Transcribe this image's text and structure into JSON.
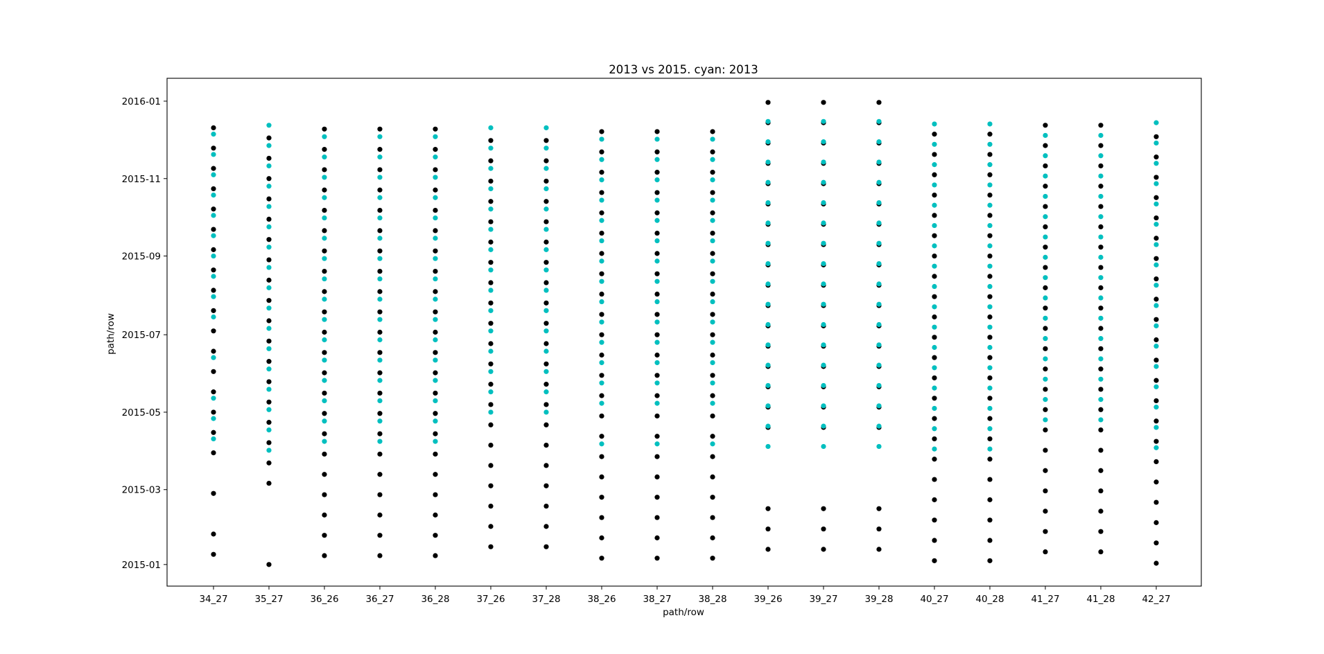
{
  "chart_data": {
    "type": "scatter",
    "title": "2013 vs 2015. cyan: 2013",
    "xlabel": "path/row",
    "ylabel": "path/row",
    "categories": [
      "34_27",
      "35_27",
      "36_26",
      "36_27",
      "36_28",
      "37_26",
      "37_28",
      "38_26",
      "38_27",
      "38_28",
      "39_26",
      "39_27",
      "39_28",
      "40_27",
      "40_28",
      "41_27",
      "41_28",
      "42_27"
    ],
    "y_ticks": [
      "2015-01",
      "2015-03",
      "2015-05",
      "2015-07",
      "2015-09",
      "2015-11",
      "2016-01"
    ],
    "ylim": [
      "2014-12-15",
      "2016-01-19"
    ],
    "grid": false,
    "colors": {
      "2015": "#000000",
      "2013": "#00bfbf"
    },
    "series": [
      {
        "name": "2015",
        "color": "#000000",
        "columns": [
          {
            "category": "34_27",
            "start": "2015-01-09",
            "end": "2015-12-22",
            "skip": [
              "2015-02-10",
              "2015-03-14"
            ]
          },
          {
            "category": "35_27",
            "start": "2015-01-01",
            "end": "2015-12-13",
            "skip": [
              "2015-01-17",
              "2015-02-02",
              "2015-02-18"
            ]
          },
          {
            "category": "36_26",
            "start": "2015-01-08",
            "end": "2015-12-20",
            "skip": []
          },
          {
            "category": "36_27",
            "start": "2015-01-08",
            "end": "2015-12-20",
            "skip": []
          },
          {
            "category": "36_28",
            "start": "2015-01-08",
            "end": "2015-12-20",
            "skip": []
          },
          {
            "category": "37_26",
            "start": "2015-01-15",
            "end": "2015-12-11",
            "skip": []
          },
          {
            "category": "37_28",
            "start": "2015-01-15",
            "end": "2015-12-11",
            "skip": []
          },
          {
            "category": "38_26",
            "start": "2015-01-06",
            "end": "2015-12-18",
            "skip": []
          },
          {
            "category": "38_27",
            "start": "2015-01-06",
            "end": "2015-12-18",
            "skip": []
          },
          {
            "category": "38_28",
            "start": "2015-01-06",
            "end": "2015-12-18",
            "skip": []
          },
          {
            "category": "39_26",
            "start": "2015-01-13",
            "end": "2016-01-01",
            "skip": [
              "2015-03-02",
              "2015-03-18",
              "2015-04-03"
            ]
          },
          {
            "category": "39_27",
            "start": "2015-01-13",
            "end": "2016-01-01",
            "skip": [
              "2015-03-02",
              "2015-03-18",
              "2015-04-03"
            ]
          },
          {
            "category": "39_28",
            "start": "2015-01-13",
            "end": "2016-01-01",
            "skip": [
              "2015-03-02",
              "2015-03-18",
              "2015-04-03"
            ]
          },
          {
            "category": "40_27",
            "start": "2015-01-04",
            "end": "2015-12-16",
            "skip": []
          },
          {
            "category": "40_28",
            "start": "2015-01-04",
            "end": "2015-12-16",
            "skip": []
          },
          {
            "category": "41_27",
            "start": "2015-01-11",
            "end": "2015-12-23",
            "skip": []
          },
          {
            "category": "41_28",
            "start": "2015-01-11",
            "end": "2015-12-23",
            "skip": []
          },
          {
            "category": "42_27",
            "start": "2015-01-02",
            "end": "2015-12-14",
            "skip": []
          }
        ]
      },
      {
        "name": "2013",
        "color": "#00bfbf",
        "columns": [
          {
            "category": "34_27",
            "start": "2015-04-10",
            "end": "2015-12-17",
            "skip": [
              "2015-05-28",
              "2015-06-29"
            ]
          },
          {
            "category": "35_27",
            "start": "2015-04-01",
            "end": "2015-12-24",
            "skip": []
          },
          {
            "category": "36_26",
            "start": "2015-04-08",
            "end": "2015-12-15",
            "skip": []
          },
          {
            "category": "36_27",
            "start": "2015-04-08",
            "end": "2015-12-15",
            "skip": []
          },
          {
            "category": "36_28",
            "start": "2015-04-08",
            "end": "2015-12-15",
            "skip": []
          },
          {
            "category": "37_26",
            "start": "2015-05-01",
            "end": "2015-12-22",
            "skip": []
          },
          {
            "category": "37_28",
            "start": "2015-05-01",
            "end": "2015-12-22",
            "skip": []
          },
          {
            "category": "38_26",
            "start": "2015-04-06",
            "end": "2015-12-13",
            "skip": [
              "2015-04-22"
            ]
          },
          {
            "category": "38_27",
            "start": "2015-04-06",
            "end": "2015-12-13",
            "skip": [
              "2015-04-22"
            ]
          },
          {
            "category": "38_28",
            "start": "2015-04-06",
            "end": "2015-12-13",
            "skip": [
              "2015-04-22"
            ]
          },
          {
            "category": "39_26",
            "start": "2015-04-04",
            "end": "2015-12-27",
            "skip": []
          },
          {
            "category": "39_27",
            "start": "2015-04-04",
            "end": "2015-12-27",
            "skip": []
          },
          {
            "category": "39_28",
            "start": "2015-04-04",
            "end": "2015-12-27",
            "skip": []
          },
          {
            "category": "40_27",
            "start": "2015-04-02",
            "end": "2015-12-25",
            "skip": []
          },
          {
            "category": "40_28",
            "start": "2015-04-02",
            "end": "2015-12-25",
            "skip": []
          },
          {
            "category": "41_27",
            "start": "2015-04-25",
            "end": "2015-12-16",
            "skip": []
          },
          {
            "category": "41_28",
            "start": "2015-04-25",
            "end": "2015-12-16",
            "skip": []
          },
          {
            "category": "42_27",
            "start": "2015-04-03",
            "end": "2015-12-26",
            "skip": []
          }
        ]
      }
    ]
  }
}
